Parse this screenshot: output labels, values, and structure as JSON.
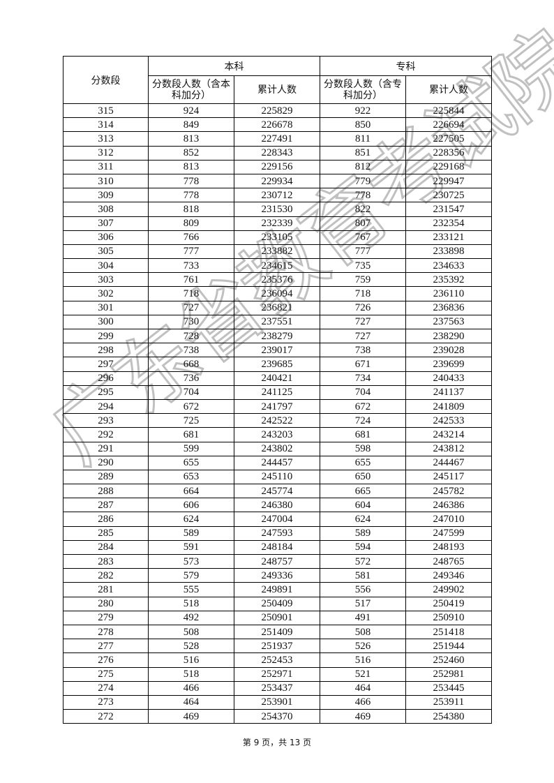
{
  "table": {
    "header": {
      "score_band": "分数段",
      "undergrad": "本科",
      "vocational": "专科",
      "undergrad_count": "分数段人数（含本科加分）",
      "undergrad_cumulative": "累计人数",
      "vocational_count": "分数段人数（含专科加分）",
      "vocational_cumulative": "累计人数"
    },
    "rows": [
      [
        "315",
        "924",
        "225829",
        "922",
        "225844"
      ],
      [
        "314",
        "849",
        "226678",
        "850",
        "226694"
      ],
      [
        "313",
        "813",
        "227491",
        "811",
        "227505"
      ],
      [
        "312",
        "852",
        "228343",
        "851",
        "228356"
      ],
      [
        "311",
        "813",
        "229156",
        "812",
        "229168"
      ],
      [
        "310",
        "778",
        "229934",
        "779",
        "229947"
      ],
      [
        "309",
        "778",
        "230712",
        "778",
        "230725"
      ],
      [
        "308",
        "818",
        "231530",
        "822",
        "231547"
      ],
      [
        "307",
        "809",
        "232339",
        "807",
        "232354"
      ],
      [
        "306",
        "766",
        "233105",
        "767",
        "233121"
      ],
      [
        "305",
        "777",
        "233882",
        "777",
        "233898"
      ],
      [
        "304",
        "733",
        "234615",
        "735",
        "234633"
      ],
      [
        "303",
        "761",
        "235376",
        "759",
        "235392"
      ],
      [
        "302",
        "718",
        "236094",
        "718",
        "236110"
      ],
      [
        "301",
        "727",
        "236821",
        "726",
        "236836"
      ],
      [
        "300",
        "730",
        "237551",
        "727",
        "237563"
      ],
      [
        "299",
        "728",
        "238279",
        "727",
        "238290"
      ],
      [
        "298",
        "738",
        "239017",
        "738",
        "239028"
      ],
      [
        "297",
        "668",
        "239685",
        "671",
        "239699"
      ],
      [
        "296",
        "736",
        "240421",
        "734",
        "240433"
      ],
      [
        "295",
        "704",
        "241125",
        "704",
        "241137"
      ],
      [
        "294",
        "672",
        "241797",
        "672",
        "241809"
      ],
      [
        "293",
        "725",
        "242522",
        "724",
        "242533"
      ],
      [
        "292",
        "681",
        "243203",
        "681",
        "243214"
      ],
      [
        "291",
        "599",
        "243802",
        "598",
        "243812"
      ],
      [
        "290",
        "655",
        "244457",
        "655",
        "244467"
      ],
      [
        "289",
        "653",
        "245110",
        "650",
        "245117"
      ],
      [
        "288",
        "664",
        "245774",
        "665",
        "245782"
      ],
      [
        "287",
        "606",
        "246380",
        "604",
        "246386"
      ],
      [
        "286",
        "624",
        "247004",
        "624",
        "247010"
      ],
      [
        "285",
        "589",
        "247593",
        "589",
        "247599"
      ],
      [
        "284",
        "591",
        "248184",
        "594",
        "248193"
      ],
      [
        "283",
        "573",
        "248757",
        "572",
        "248765"
      ],
      [
        "282",
        "579",
        "249336",
        "581",
        "249346"
      ],
      [
        "281",
        "555",
        "249891",
        "556",
        "249902"
      ],
      [
        "280",
        "518",
        "250409",
        "517",
        "250419"
      ],
      [
        "279",
        "492",
        "250901",
        "491",
        "250910"
      ],
      [
        "278",
        "508",
        "251409",
        "508",
        "251418"
      ],
      [
        "277",
        "528",
        "251937",
        "526",
        "251944"
      ],
      [
        "276",
        "516",
        "252453",
        "516",
        "252460"
      ],
      [
        "275",
        "518",
        "252971",
        "521",
        "252981"
      ],
      [
        "274",
        "466",
        "253437",
        "464",
        "253445"
      ],
      [
        "273",
        "464",
        "253901",
        "466",
        "253911"
      ],
      [
        "272",
        "469",
        "254370",
        "469",
        "254380"
      ]
    ]
  },
  "footer": "第 9 页，共 13 页",
  "watermark": "广东省教育考试院"
}
